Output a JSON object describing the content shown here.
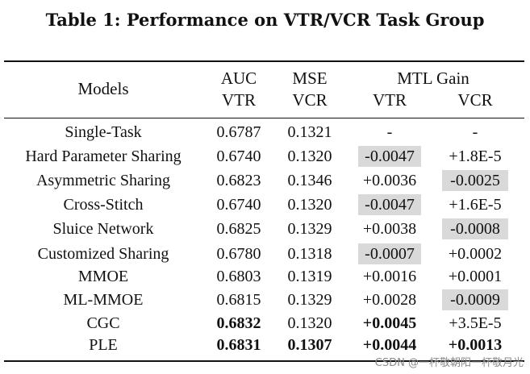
{
  "title": "Table 1: Performance on VTR/VCR Task Group",
  "header": {
    "models": "Models",
    "auc_top": "AUC",
    "auc_bottom": "VTR",
    "mse_top": "MSE",
    "mse_bottom": "VCR",
    "mtl_gain": "MTL Gain",
    "mtl_vtr": "VTR",
    "mtl_vcr": "VCR"
  },
  "rows": [
    {
      "model": "Single-Task",
      "auc": "0.6787",
      "mse": "0.1321",
      "gain_vtr": "-",
      "gain_vcr": "-"
    },
    {
      "model": "Hard Parameter Sharing",
      "auc": "0.6740",
      "mse": "0.1320",
      "gain_vtr": "-0.0047",
      "gain_vcr": "+1.8E-5"
    },
    {
      "model": "Asymmetric Sharing",
      "auc": "0.6823",
      "mse": "0.1346",
      "gain_vtr": "+0.0036",
      "gain_vcr": "-0.0025"
    },
    {
      "model": "Cross-Stitch",
      "auc": "0.6740",
      "mse": "0.1320",
      "gain_vtr": "-0.0047",
      "gain_vcr": "+1.6E-5"
    },
    {
      "model": "Sluice Network",
      "auc": "0.6825",
      "mse": "0.1329",
      "gain_vtr": "+0.0038",
      "gain_vcr": "-0.0008"
    },
    {
      "model": "Customized Sharing",
      "auc": "0.6780",
      "mse": "0.1318",
      "gain_vtr": "-0.0007",
      "gain_vcr": "+0.0002"
    },
    {
      "model": "MMOE",
      "auc": "0.6803",
      "mse": "0.1319",
      "gain_vtr": "+0.0016",
      "gain_vcr": "+0.0001"
    },
    {
      "model": "ML-MMOE",
      "auc": "0.6815",
      "mse": "0.1329",
      "gain_vtr": "+0.0028",
      "gain_vcr": "-0.0009"
    },
    {
      "model": "CGC",
      "auc": "0.6832",
      "mse": "0.1320",
      "gain_vtr": "+0.0045",
      "gain_vcr": "+3.5E-5"
    },
    {
      "model": "PLE",
      "auc": "0.6831",
      "mse": "0.1307",
      "gain_vtr": "+0.0044",
      "gain_vcr": "+0.0013"
    }
  ],
  "watermark": "CSDN @一杯敬朝阳一杯敬月光"
}
